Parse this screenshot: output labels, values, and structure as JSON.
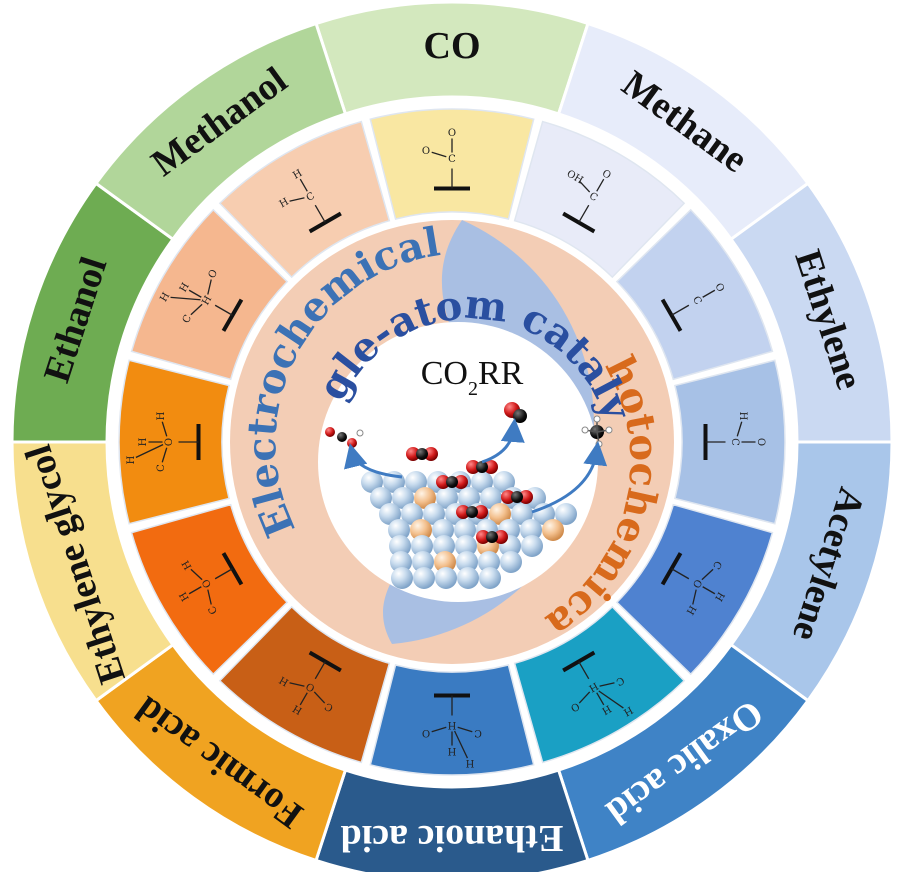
{
  "outer_ring": [
    {
      "label": "CO",
      "color": "#d3e8be"
    },
    {
      "label": "Methane",
      "color": "#e7ecfa"
    },
    {
      "label": "Ethylene",
      "color": "#cad9f2"
    },
    {
      "label": "Acetylene",
      "color": "#a9c6ea"
    },
    {
      "label": "Oxalic acid",
      "color": "#3f83c6"
    },
    {
      "label": "Ethanoic acid",
      "color": "#2a5a8c"
    },
    {
      "label": "Formic acid",
      "color": "#f0a321"
    },
    {
      "label": "Ethylene glycol",
      "color": "#f7df8e"
    },
    {
      "label": "Ethanol",
      "color": "#6eac52"
    },
    {
      "label": "Methanol",
      "color": "#b1d69a"
    }
  ],
  "inner_ring": [
    {
      "color": "#f9e7a2",
      "atoms": [
        "O",
        "C",
        "O"
      ]
    },
    {
      "color": "#e8ebf8",
      "atoms": [
        "O",
        "C",
        "OH"
      ]
    },
    {
      "color": "#c2d2ef",
      "atoms": [
        "O",
        "C"
      ]
    },
    {
      "color": "#a7c1e6",
      "atoms": [
        "O",
        "C",
        "H"
      ]
    },
    {
      "color": "#4f82d0",
      "atoms": [
        "H",
        "O",
        "C",
        "H"
      ]
    },
    {
      "color": "#1aa0c4",
      "atoms": [
        "H",
        "H",
        "C",
        "O",
        "H"
      ]
    },
    {
      "color": "#3a7bc2",
      "atoms": [
        "H",
        "H",
        "C",
        "O",
        "H"
      ]
    },
    {
      "color": "#c85f16",
      "atoms": [
        "H",
        "O",
        "C",
        "H"
      ]
    },
    {
      "color": "#f26b10",
      "atoms": [
        "H",
        "O",
        "C",
        "H"
      ]
    },
    {
      "color": "#f28c10",
      "atoms": [
        "H",
        "O",
        "C",
        "H",
        "H"
      ]
    },
    {
      "color": "#f5b78f",
      "atoms": [
        "H",
        "H",
        "C",
        "O",
        "H"
      ]
    },
    {
      "color": "#f7cdb0",
      "atoms": [
        "H",
        "C",
        "H"
      ]
    }
  ],
  "center": {
    "left_word": "Electrochemical",
    "right_word": "Photochemical",
    "subtitle": "Single-atom catalysts",
    "reaction": "CO",
    "reaction_sub": "2",
    "reaction_tail": "RR",
    "left_color": "#3c72b5",
    "right_color": "#d86a1c",
    "subtitle_color": "#2a4fa0"
  }
}
